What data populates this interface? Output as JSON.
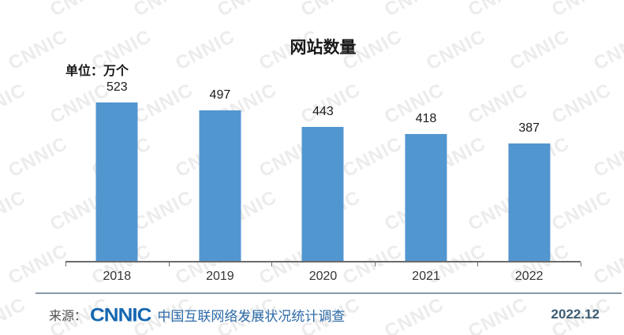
{
  "title": "网站数量",
  "unit_label": "单位：万个",
  "watermark": {
    "text": "CNNIC",
    "color": "#ececec"
  },
  "chart_data": {
    "type": "bar",
    "title": "网站数量",
    "unit": "万个",
    "categories": [
      "2018",
      "2019",
      "2020",
      "2021",
      "2022"
    ],
    "values": [
      523,
      497,
      443,
      418,
      387
    ],
    "xlabel": "",
    "ylabel": "",
    "ylim": [
      0,
      560
    ],
    "grid": false,
    "legend": false,
    "bar_color": "#5296d0",
    "value_label_color": "#1a1a1a",
    "axis_color": "#6b6b6b",
    "tick_label_color": "#333333"
  },
  "footer": {
    "source_prefix": "来源：",
    "logo_text": "CNNIC",
    "logo_color": "#1567b1",
    "source_text": "中国互联网络发展状况统计调查",
    "source_text_color": "#2d6ba8",
    "date": "2022.12",
    "date_color": "#3d5d73",
    "divider_color": "#8a99a6"
  }
}
